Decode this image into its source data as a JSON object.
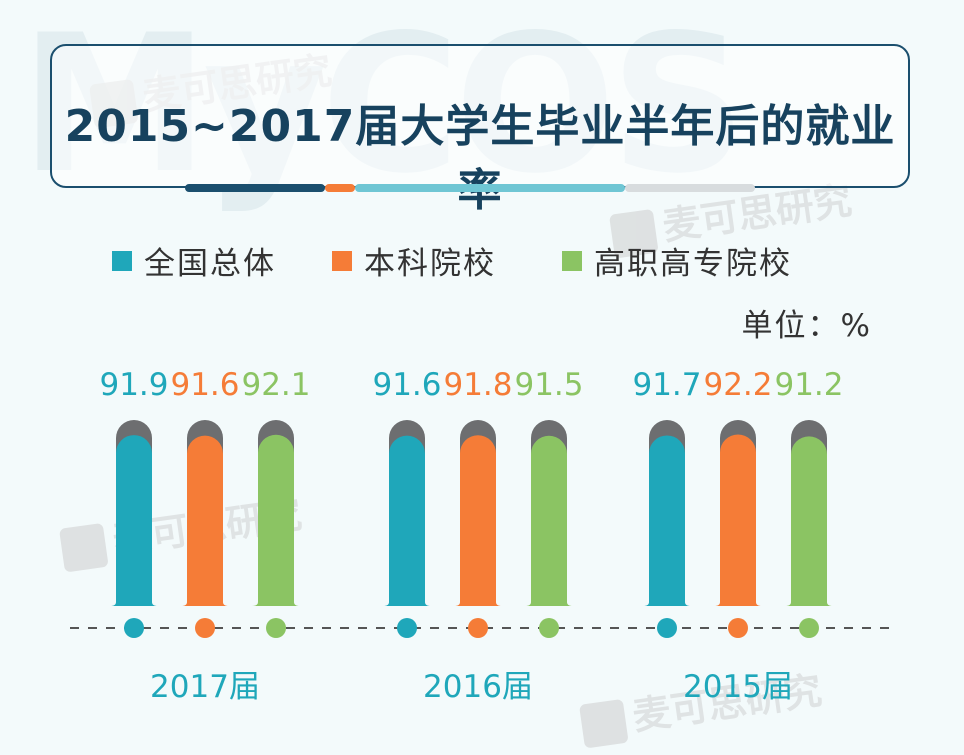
{
  "title": "2015~2017届大学生毕业半年后的就业率",
  "watermark": {
    "brand": "麦可思研究",
    "logo_text": "MyCOS"
  },
  "unit_label": "单位：%",
  "colors": {
    "national": "#1fa7ba",
    "undergrad": "#f57c37",
    "vocational": "#8bc463",
    "cap": "#6d6e70",
    "dashed_line": "#555555",
    "title_dark": "#17425e"
  },
  "chart_data": {
    "type": "bar",
    "categories": [
      "2017届",
      "2016届",
      "2015届"
    ],
    "series": [
      {
        "name": "全国总体",
        "values": [
          91.9,
          91.6,
          91.7
        ]
      },
      {
        "name": "本科院校",
        "values": [
          91.6,
          91.8,
          92.2
        ]
      },
      {
        "name": "高职高专院校",
        "values": [
          92.1,
          91.5,
          91.2
        ]
      }
    ],
    "title": "2015~2017届大学生毕业半年后的就业率",
    "xlabel": "",
    "ylabel": "单位：%",
    "ylim": [
      0,
      100
    ],
    "legend_position": "top-left",
    "grid": false
  }
}
